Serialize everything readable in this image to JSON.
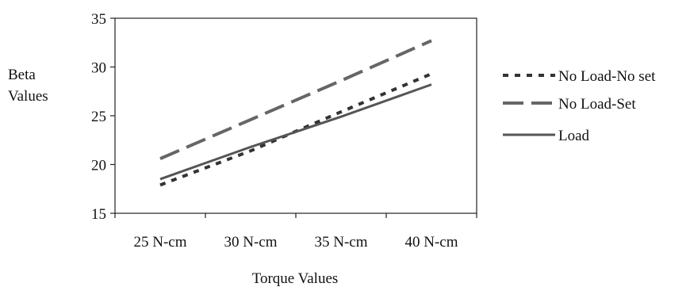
{
  "chart_data": {
    "type": "line",
    "categories": [
      "25 N-cm",
      "30 N-cm",
      "35 N-cm",
      "40 N-cm"
    ],
    "series": [
      {
        "name": "No Load-No set",
        "values": [
          17.9,
          21.4,
          25.4,
          29.3
        ],
        "color": "#333333",
        "style": "dotted"
      },
      {
        "name": "No Load-Set",
        "values": [
          20.6,
          24.6,
          28.6,
          32.7
        ],
        "color": "#666666",
        "style": "dashed"
      },
      {
        "name": "Load",
        "values": [
          18.5,
          21.8,
          24.9,
          28.2
        ],
        "color": "#555555",
        "style": "solid"
      }
    ],
    "ylabel_lines": [
      "Beta",
      "Values"
    ],
    "xlabel": "Torque Values",
    "ylim": [
      15,
      35
    ],
    "yticks": [
      15,
      20,
      25,
      30,
      35
    ],
    "grid": false,
    "legend_position": "right"
  }
}
